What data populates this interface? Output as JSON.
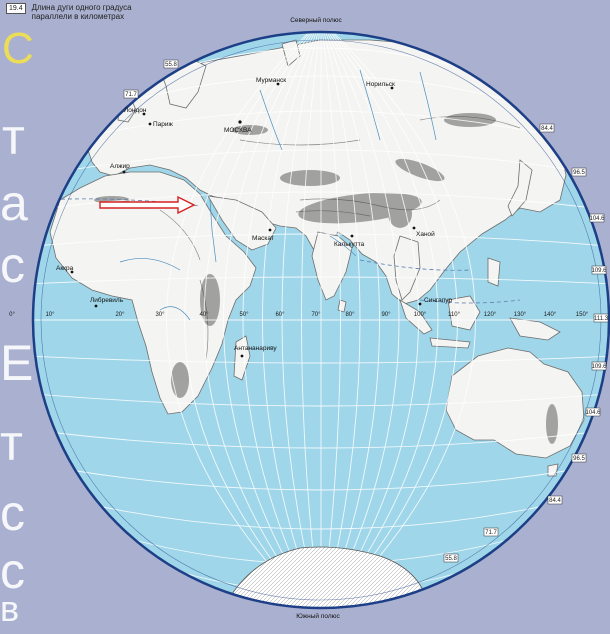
{
  "legend": {
    "number": "19.4",
    "line1": "Длина дуги одного градуса",
    "line2": "параллели в километрах"
  },
  "poles": {
    "north": "Северный полюс",
    "south": "Южный полюс"
  },
  "cities": [
    "Мурманск",
    "Норильск",
    "Лондон",
    "Париж",
    "МОСКВА",
    "Алжир",
    "Маскат",
    "Калькутта",
    "Ханой",
    "Аккра",
    "Либревиль",
    "Сингапур",
    "Антананариву"
  ],
  "equator_labels": [
    "10°",
    "0°",
    "20°",
    "30°",
    "40°",
    "50°",
    "60°",
    "70°",
    "80°",
    "90°",
    "100°",
    "110°",
    "120°",
    "130°",
    "140°",
    "150°"
  ],
  "arc_values": [
    "55.8",
    "71.7",
    "84.4",
    "96.5",
    "104.6",
    "109.6",
    "111.3",
    "109.6",
    "104.6",
    "96.5",
    "84.4",
    "71.7",
    "55.8"
  ],
  "ghost_glyphs": [
    "С",
    "т",
    "а",
    "с",
    "Е",
    "т",
    "с",
    "с",
    "в"
  ],
  "colors": {
    "ocean": "#9fd6e9",
    "land": "#f4f4f2",
    "relief": "#6f6f6f",
    "grid": "#ffffff",
    "rim": "#1d3f87",
    "background": "#aab0cf",
    "arrow": "#d62222"
  }
}
